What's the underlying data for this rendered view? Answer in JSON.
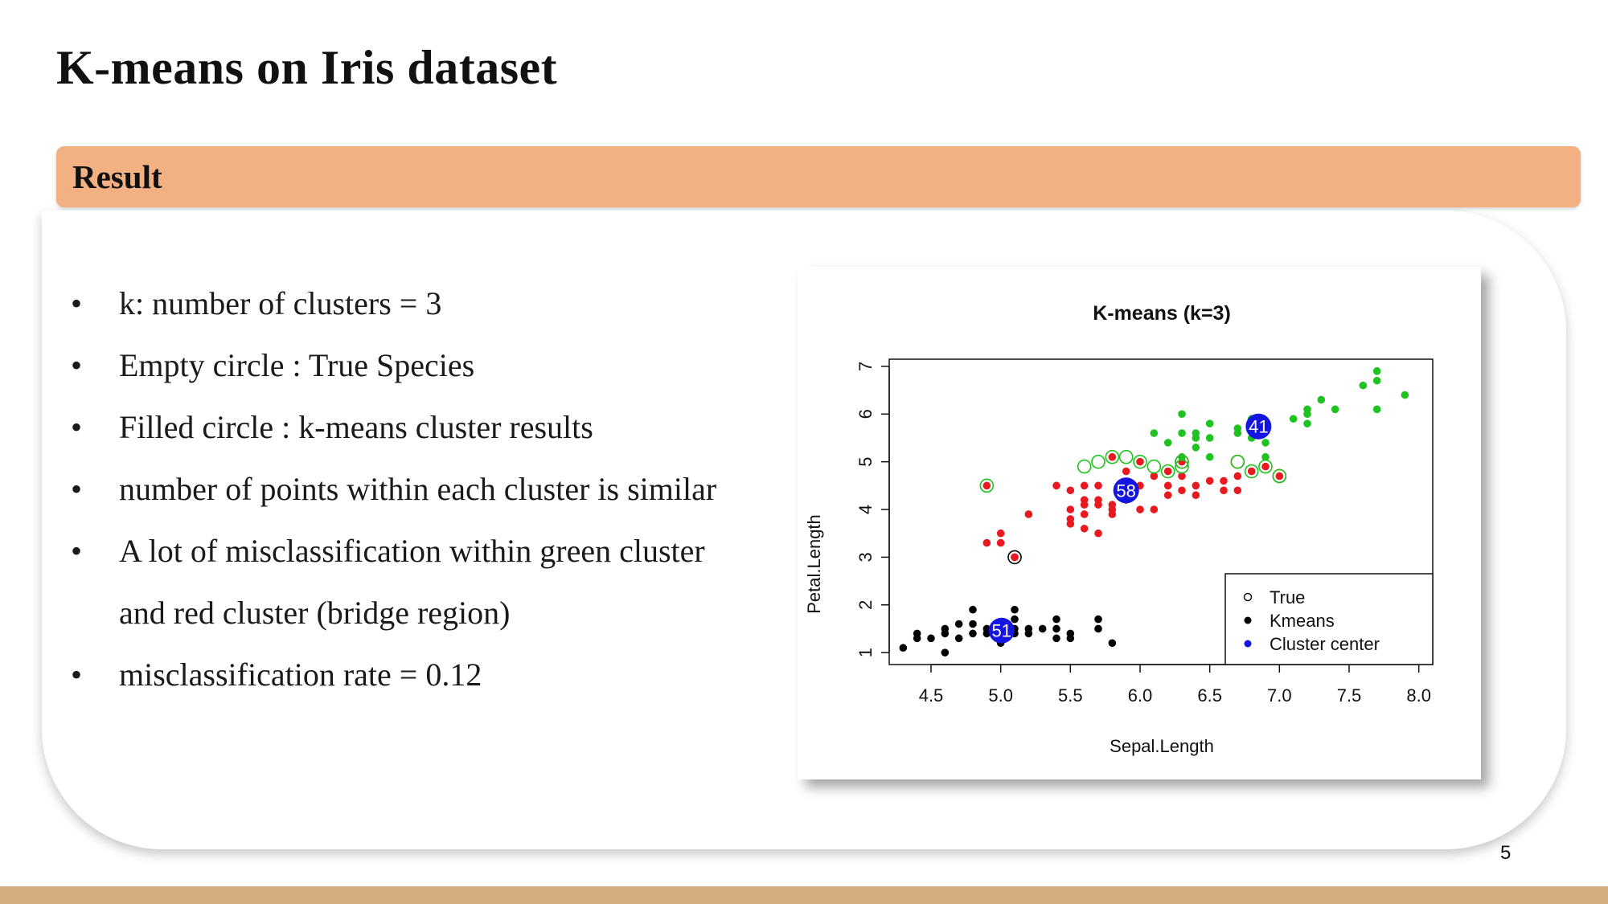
{
  "slide": {
    "title": "K-means on Iris dataset",
    "section_label": "Result",
    "page_number": "5",
    "accent_color": "#f3b083",
    "footer_color": "#d3ad7d"
  },
  "bullets": [
    "k: number of clusters = 3",
    "Empty circle : True Species",
    "Filled circle : k-means cluster results",
    "number of points within each cluster is similar",
    "A lot of misclassification within green cluster",
    "misclassification rate = 0.12"
  ],
  "bullet_continuation": "and red cluster (bridge region)",
  "chart_data": {
    "type": "scatter",
    "title": "K-means (k=3)",
    "xlabel": "Sepal.Length",
    "ylabel": "Petal.Length",
    "xlim": [
      4.2,
      8.1
    ],
    "ylim": [
      0.75,
      7.15
    ],
    "xticks": [
      "4.5",
      "5.0",
      "5.5",
      "6.0",
      "6.5",
      "7.0",
      "7.5",
      "8.0"
    ],
    "yticks": [
      "1",
      "2",
      "3",
      "4",
      "5",
      "6",
      "7"
    ],
    "grid": false,
    "legend": {
      "placement": "bottom-right",
      "entries": [
        "True",
        "Kmeans",
        "Cluster center"
      ]
    },
    "colors": {
      "cluster_1": "#000000",
      "cluster_2": "#e8191f",
      "cluster_3": "#1fc31f",
      "center": "#1515e0"
    },
    "kmeans_points": {
      "cluster_1": [
        [
          4.3,
          1.1
        ],
        [
          4.4,
          1.3
        ],
        [
          4.4,
          1.4
        ],
        [
          4.5,
          1.3
        ],
        [
          4.6,
          1.0
        ],
        [
          4.6,
          1.4
        ],
        [
          4.6,
          1.5
        ],
        [
          4.7,
          1.3
        ],
        [
          4.7,
          1.6
        ],
        [
          4.8,
          1.4
        ],
        [
          4.8,
          1.6
        ],
        [
          4.8,
          1.9
        ],
        [
          4.9,
          1.4
        ],
        [
          4.9,
          1.5
        ],
        [
          5.0,
          1.2
        ],
        [
          5.0,
          1.4
        ],
        [
          5.0,
          1.6
        ],
        [
          5.1,
          1.4
        ],
        [
          5.1,
          1.5
        ],
        [
          5.1,
          1.7
        ],
        [
          5.1,
          1.9
        ],
        [
          5.1,
          3.0
        ],
        [
          5.2,
          1.4
        ],
        [
          5.2,
          1.5
        ],
        [
          5.3,
          1.5
        ],
        [
          5.4,
          1.3
        ],
        [
          5.4,
          1.5
        ],
        [
          5.4,
          1.7
        ],
        [
          5.5,
          1.3
        ],
        [
          5.5,
          1.4
        ],
        [
          5.7,
          1.5
        ],
        [
          5.7,
          1.7
        ],
        [
          5.8,
          1.2
        ]
      ],
      "cluster_2": [
        [
          4.9,
          3.3
        ],
        [
          4.9,
          4.5
        ],
        [
          5.0,
          3.3
        ],
        [
          5.0,
          3.5
        ],
        [
          5.1,
          3.0
        ],
        [
          5.2,
          3.9
        ],
        [
          5.4,
          4.5
        ],
        [
          5.5,
          3.7
        ],
        [
          5.5,
          3.8
        ],
        [
          5.5,
          4.0
        ],
        [
          5.5,
          4.4
        ],
        [
          5.6,
          3.6
        ],
        [
          5.6,
          3.9
        ],
        [
          5.6,
          4.1
        ],
        [
          5.6,
          4.2
        ],
        [
          5.6,
          4.5
        ],
        [
          5.7,
          3.5
        ],
        [
          5.7,
          4.1
        ],
        [
          5.7,
          4.2
        ],
        [
          5.7,
          4.5
        ],
        [
          5.8,
          3.9
        ],
        [
          5.8,
          4.0
        ],
        [
          5.8,
          4.1
        ],
        [
          5.8,
          5.1
        ],
        [
          5.9,
          4.2
        ],
        [
          5.9,
          4.8
        ],
        [
          6.0,
          4.0
        ],
        [
          6.0,
          4.5
        ],
        [
          6.0,
          5.0
        ],
        [
          6.1,
          4.0
        ],
        [
          6.1,
          4.7
        ],
        [
          6.2,
          4.3
        ],
        [
          6.2,
          4.5
        ],
        [
          6.2,
          4.8
        ],
        [
          6.3,
          4.4
        ],
        [
          6.3,
          4.7
        ],
        [
          6.3,
          5.0
        ],
        [
          6.4,
          4.3
        ],
        [
          6.4,
          4.5
        ],
        [
          6.5,
          4.6
        ],
        [
          6.6,
          4.4
        ],
        [
          6.6,
          4.6
        ],
        [
          6.7,
          4.4
        ],
        [
          6.7,
          4.7
        ],
        [
          6.8,
          4.8
        ],
        [
          6.9,
          4.9
        ],
        [
          7.0,
          4.7
        ]
      ],
      "cluster_3": [
        [
          6.1,
          5.6
        ],
        [
          6.2,
          5.4
        ],
        [
          6.3,
          5.1
        ],
        [
          6.3,
          5.6
        ],
        [
          6.3,
          6.0
        ],
        [
          6.4,
          5.3
        ],
        [
          6.4,
          5.5
        ],
        [
          6.4,
          5.6
        ],
        [
          6.5,
          5.1
        ],
        [
          6.5,
          5.5
        ],
        [
          6.5,
          5.8
        ],
        [
          6.7,
          5.6
        ],
        [
          6.7,
          5.7
        ],
        [
          6.8,
          5.5
        ],
        [
          6.8,
          5.9
        ],
        [
          6.9,
          5.1
        ],
        [
          6.9,
          5.4
        ],
        [
          6.9,
          5.7
        ],
        [
          7.1,
          5.9
        ],
        [
          7.2,
          5.8
        ],
        [
          7.2,
          6.0
        ],
        [
          7.2,
          6.1
        ],
        [
          7.3,
          6.3
        ],
        [
          7.4,
          6.1
        ],
        [
          7.6,
          6.6
        ],
        [
          7.7,
          6.1
        ],
        [
          7.7,
          6.7
        ],
        [
          7.7,
          6.9
        ],
        [
          7.9,
          6.4
        ]
      ]
    },
    "true_circles": {
      "cluster_1": [
        [
          5.1,
          3.0
        ]
      ],
      "cluster_2": [
        [
          6.3,
          5.0
        ],
        [
          6.7,
          5.0
        ],
        [
          7.0,
          4.7
        ]
      ],
      "cluster_3": [
        [
          4.9,
          4.5
        ],
        [
          5.6,
          4.9
        ],
        [
          5.7,
          5.0
        ],
        [
          5.8,
          5.1
        ],
        [
          5.9,
          5.1
        ],
        [
          6.0,
          5.0
        ],
        [
          6.1,
          4.9
        ],
        [
          6.2,
          4.8
        ],
        [
          6.3,
          4.9
        ],
        [
          6.3,
          5.0
        ],
        [
          6.7,
          5.0
        ],
        [
          6.8,
          4.8
        ],
        [
          6.9,
          4.9
        ],
        [
          7.0,
          4.7
        ]
      ]
    },
    "centers": [
      {
        "label": "51",
        "x": 5.006,
        "y": 1.462
      },
      {
        "label": "58",
        "x": 5.9,
        "y": 4.4
      },
      {
        "label": "41",
        "x": 6.85,
        "y": 5.74
      }
    ]
  }
}
